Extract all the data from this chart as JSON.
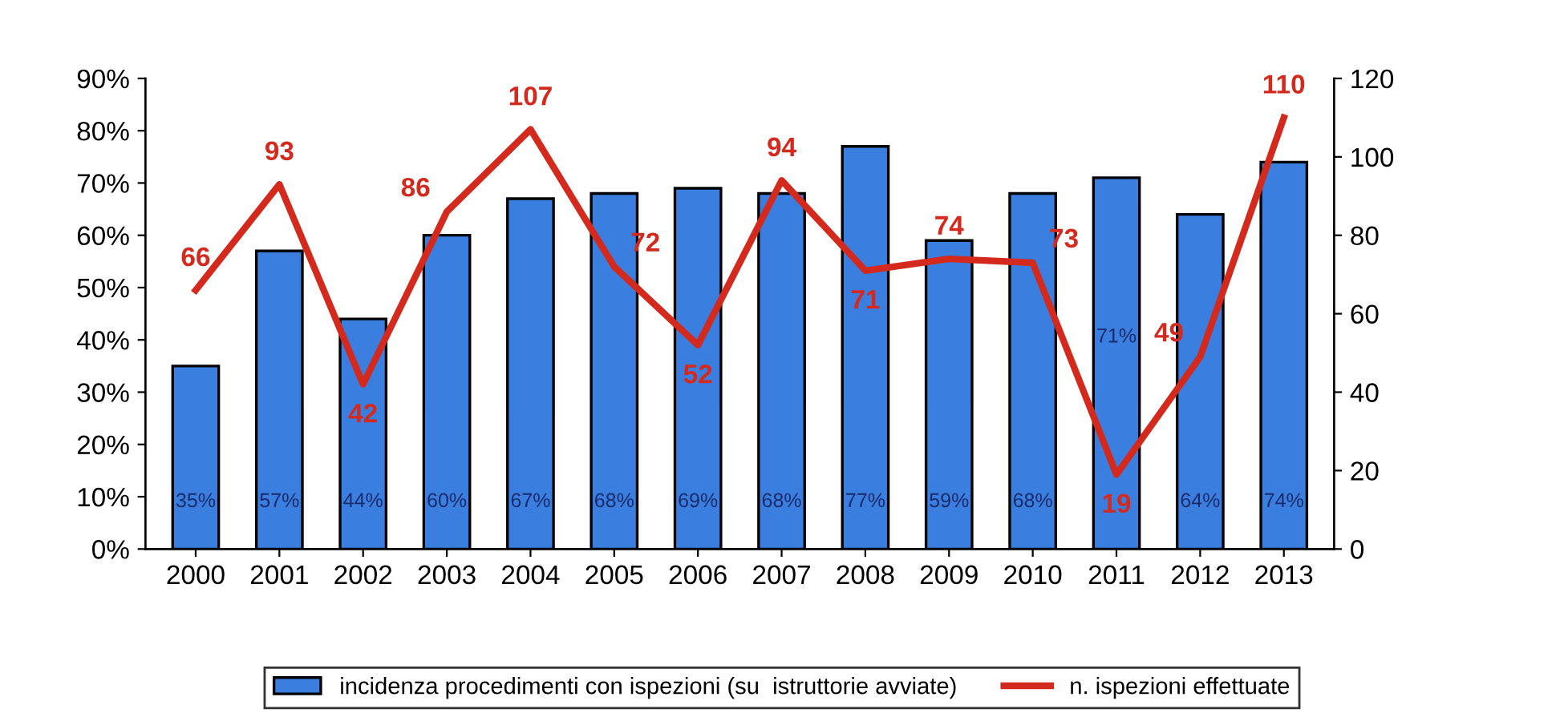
{
  "chart_data": {
    "type": "bar",
    "categories": [
      "2000",
      "2001",
      "2002",
      "2003",
      "2004",
      "2005",
      "2006",
      "2007",
      "2008",
      "2009",
      "2010",
      "2011",
      "2012",
      "2013"
    ],
    "series": [
      {
        "name": "incidenza procedimenti con ispezioni (su  istruttorie avviate)",
        "color": "#3a7fe0",
        "values": [
          35,
          57,
          44,
          60,
          67,
          68,
          69,
          68,
          77,
          59,
          68,
          71,
          64,
          74
        ],
        "value_labels": [
          "35%",
          "57%",
          "44%",
          "60%",
          "67%",
          "68%",
          "69%",
          "68%",
          "77%",
          "59%",
          "68%",
          "71%",
          "64%",
          "74%"
        ]
      },
      {
        "name": "n. ispezioni effettuate",
        "type": "line",
        "axis": "y2",
        "color": "#d42a1e",
        "values": [
          66,
          93,
          42,
          86,
          107,
          72,
          52,
          94,
          71,
          74,
          73,
          19,
          49,
          110
        ],
        "value_labels": [
          "66",
          "93",
          "42",
          "86",
          "107",
          "72",
          "52",
          "94",
          "71",
          "74",
          "73",
          "19",
          "49",
          "110"
        ]
      }
    ],
    "ylim": [
      0,
      90
    ],
    "yticks": [
      {
        "value": 0,
        "label": "0%"
      },
      {
        "value": 10,
        "label": "10%"
      },
      {
        "value": 20,
        "label": "20%"
      },
      {
        "value": 30,
        "label": "30%"
      },
      {
        "value": 40,
        "label": "40%"
      },
      {
        "value": 50,
        "label": "50%"
      },
      {
        "value": 60,
        "label": "60%"
      },
      {
        "value": 70,
        "label": "70%"
      },
      {
        "value": 80,
        "label": "80%"
      },
      {
        "value": 90,
        "label": "90%"
      }
    ],
    "y2lim": [
      0,
      120
    ],
    "y2ticks": [
      0,
      20,
      40,
      60,
      80,
      100,
      120
    ],
    "legend": "bottom",
    "marker": "none"
  }
}
